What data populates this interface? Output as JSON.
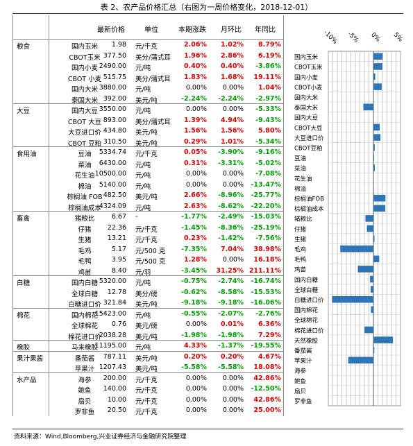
{
  "title": "表 2、农产品价格汇总（右图为一周价格变化，2018-12-01）",
  "headers": {
    "price": "最新价格",
    "unit": "单位",
    "week": "本期涨跌",
    "month": "月环比",
    "year": "年同比"
  },
  "axis_ticks": [
    "-10%",
    "-5%",
    "0%",
    "5%"
  ],
  "source": "资料来源：Wind,Bloomberg,兴业证券经济与金融研究院整理",
  "groups": [
    {
      "name": "粮食",
      "rows": [
        0,
        1,
        2,
        3,
        4,
        5
      ]
    },
    {
      "name": "大豆",
      "rows": [
        6,
        7,
        8,
        9
      ]
    },
    {
      "name": "食用油",
      "rows": [
        10,
        11,
        12,
        13,
        14,
        15
      ]
    },
    {
      "name": "畜禽",
      "rows": [
        16,
        17,
        18,
        19,
        20,
        21
      ]
    },
    {
      "name": "白糖",
      "rows": [
        22,
        23,
        24
      ]
    },
    {
      "name": "棉花",
      "rows": [
        25,
        26,
        27
      ]
    },
    {
      "name": "橡胶",
      "rows": [
        28
      ]
    },
    {
      "name": "果汁果酱",
      "rows": [
        29,
        30
      ]
    },
    {
      "name": "水产品",
      "rows": [
        31,
        32,
        33,
        34
      ]
    }
  ],
  "rows": [
    {
      "name": "国内玉米",
      "price": "1.98",
      "unit": "元/千克",
      "week": "2.06%",
      "month": "1.02%",
      "year": "8.79%"
    },
    {
      "name": "CBOT玉米",
      "price": "377.50",
      "unit": "美分/蒲式耳",
      "week": "1.96%",
      "month": "2.86%",
      "year": "6.19%"
    },
    {
      "name": "国内小麦",
      "price": "2490.00",
      "unit": "元/吨",
      "week": "0.40%",
      "month": "0.40%",
      "year": "-3.86%"
    },
    {
      "name": "CBOT 小麦",
      "price": "515.75",
      "unit": "美分/蒲式耳",
      "week": "1.83%",
      "month": "1.68%",
      "year": "19.11%"
    },
    {
      "name": "国内大米",
      "price": "3880.00",
      "unit": "元/吨",
      "week": "0.00%",
      "month": "0.00%",
      "year": "1.04%"
    },
    {
      "name": "泰国大米",
      "price": "392.00",
      "unit": "美元/吨",
      "week": "-2.24%",
      "month": "-2.24%",
      "year": "-2.97%"
    },
    {
      "name": "国内大豆",
      "price": "3550.00",
      "unit": "元/吨",
      "week": "0.00%",
      "month": "0.00%",
      "year": "-5.33%"
    },
    {
      "name": "CBOT 大豆",
      "price": "893.00",
      "unit": "美分/蒲式耳",
      "week": "1.39%",
      "month": "4.94%",
      "year": "-9.43%"
    },
    {
      "name": "大豆进口价",
      "price": "434.80",
      "unit": "美元/吨",
      "week": "1.56%",
      "month": "1.56%",
      "year": "5.80%"
    },
    {
      "name": "CBOT 豆粕",
      "price": "310.50",
      "unit": "美元/吨",
      "week": "0.29%",
      "month": "1.01%",
      "year": "-5.34%"
    },
    {
      "name": "豆油",
      "price": "5334.74",
      "unit": "元/千克",
      "week": "0.05%",
      "month": "-3.90%",
      "year": "-9.16%"
    },
    {
      "name": "菜油",
      "price": "6430.00",
      "unit": "元/吨",
      "week": "0.31%",
      "month": "-3.31%",
      "year": "-5.02%"
    },
    {
      "name": "花生油",
      "price": "10500.00",
      "unit": "元/吨",
      "week": "0.00%",
      "month": "0.00%",
      "year": "-7.08%"
    },
    {
      "name": "棉油",
      "price": "5140.00",
      "unit": "元/吨",
      "week": "0.00%",
      "month": "0.00%",
      "year": "-13.47%"
    },
    {
      "name": "棕榈油 FOB",
      "price": "482.50",
      "unit": "美元/吨",
      "week": "2.66%",
      "month": "-8.96%",
      "year": "-25.77%"
    },
    {
      "name": "棕榈油成本",
      "price": "4324.09",
      "unit": "元/吨",
      "week": "2.63%",
      "month": "-8.62%",
      "year": "-22.20%"
    },
    {
      "name": "猪粮比",
      "price": "6.67",
      "unit": "-",
      "week": "-1.77%",
      "month": "-2.49%",
      "year": "-15.03%"
    },
    {
      "name": "仔猪",
      "price": "22.36",
      "unit": "元/千克",
      "week": "-1.45%",
      "month": "-8.36%",
      "year": "-25.19%"
    },
    {
      "name": "生猪",
      "price": "13.21",
      "unit": "元/千克",
      "week": "0.23%",
      "month": "-1.42%",
      "year": "-7.56%"
    },
    {
      "name": "毛鸡",
      "price": "5.17",
      "unit": "元/500 克",
      "week": "-7.35%",
      "month": "7.04%",
      "year": "38.98%"
    },
    {
      "name": "毛鸭",
      "price": "3.95",
      "unit": "元/500 克",
      "week": "1.28%",
      "month": "0.00%",
      "year": "16.18%"
    },
    {
      "name": "鸡苗",
      "price": "8.40",
      "unit": "元/羽",
      "week": "-3.45%",
      "month": "31.25%",
      "year": "211.11%"
    },
    {
      "name": "国内白糖",
      "price": "5320.00",
      "unit": "元/吨",
      "week": "-0.75%",
      "month": "-2.74%",
      "year": "-16.74%"
    },
    {
      "name": "全球白糖",
      "price": "12.78",
      "unit": "美分/磅",
      "week": "-0.62%",
      "month": "-8.58%",
      "year": "-15.53%"
    },
    {
      "name": "白糖进口价",
      "price": "321.84",
      "unit": "美元/吨",
      "week": "-9.18%",
      "month": "-9.18%",
      "year": "-16.06%"
    },
    {
      "name": "国内棉花",
      "price": "15423.00",
      "unit": "元/吨",
      "week": "-0.55%",
      "month": "-2.07%",
      "year": "-2.76%"
    },
    {
      "name": "全球棉花",
      "price": "0.76",
      "unit": "美元/磅",
      "week": "0.00%",
      "month": "0.01%",
      "year": "6.36%"
    },
    {
      "name": "棉花进口价",
      "price": "2038.28",
      "unit": "美元/吨",
      "week": "-1.98%",
      "month": "-1.98%",
      "year": "7.29%"
    },
    {
      "name": "马来橡胶",
      "price": "11195.00",
      "unit": "元/吨",
      "week": "4.33%",
      "month": "-1.37%",
      "year": "-19.55%"
    },
    {
      "name": "番茄酱",
      "price": "787.11",
      "unit": "美元/吨",
      "week": "0.20%",
      "month": "0.20%",
      "year": "4.67%"
    },
    {
      "name": "苹果汁",
      "price": "1207.43",
      "unit": "美元/吨",
      "week": "-5.58%",
      "month": "-5.58%",
      "year": "18.08%"
    },
    {
      "name": "海参",
      "price": "200.00",
      "unit": "元/千克",
      "week": "0.00%",
      "month": "0.00%",
      "year": "42.86%"
    },
    {
      "name": "鲍鱼",
      "price": "140.00",
      "unit": "元/千克",
      "week": "0.00%",
      "month": "0.00%",
      "year": "-12.50%"
    },
    {
      "name": "扇贝",
      "price": "10.00",
      "unit": "元/千克",
      "week": "0.00%",
      "month": "0.00%",
      "year": "42.86%"
    },
    {
      "name": "罗非鱼",
      "price": "20.50",
      "unit": "元/千克",
      "week": "0.00%",
      "month": "0.00%",
      "year": "25.00%"
    }
  ],
  "chart_data": {
    "type": "bar",
    "orientation": "horizontal",
    "categories": [
      "国内玉米",
      "CBOT玉米",
      "国内小麦",
      "CBOT小麦",
      "国内大米",
      "泰国大米",
      "国内大豆",
      "CBOT大豆",
      "大豆进口价",
      "CBOT豆粕",
      "豆油",
      "菜油",
      "花生油",
      "棉油",
      "棕榈油FOB",
      "棕榈油成本",
      "猪粮比",
      "仔猪",
      "生猪",
      "毛鸡",
      "毛鸭",
      "鸡苗",
      "国内白糖",
      "全球白糖",
      "白糖进口价",
      "国内棉花",
      "全球棉花",
      "棉花进口价",
      "天然橡胶",
      "番茄酱",
      "苹果汁",
      "海参",
      "鲍鱼",
      "扇贝",
      "罗非鱼"
    ],
    "values": [
      2.06,
      1.96,
      0.4,
      1.83,
      0.0,
      -2.24,
      0.0,
      1.39,
      1.56,
      0.29,
      0.05,
      0.31,
      0.0,
      0.0,
      2.66,
      2.63,
      -1.77,
      -1.45,
      0.23,
      -7.35,
      1.28,
      -3.45,
      -0.75,
      -0.62,
      -9.18,
      -0.55,
      0.0,
      -1.98,
      4.33,
      0.2,
      -5.58,
      0.0,
      0.0,
      0.0,
      0.0
    ],
    "xlim": [
      -10,
      6
    ],
    "ticks": [
      -10,
      -5,
      0,
      5
    ],
    "bar_color": "#2e75b6"
  }
}
